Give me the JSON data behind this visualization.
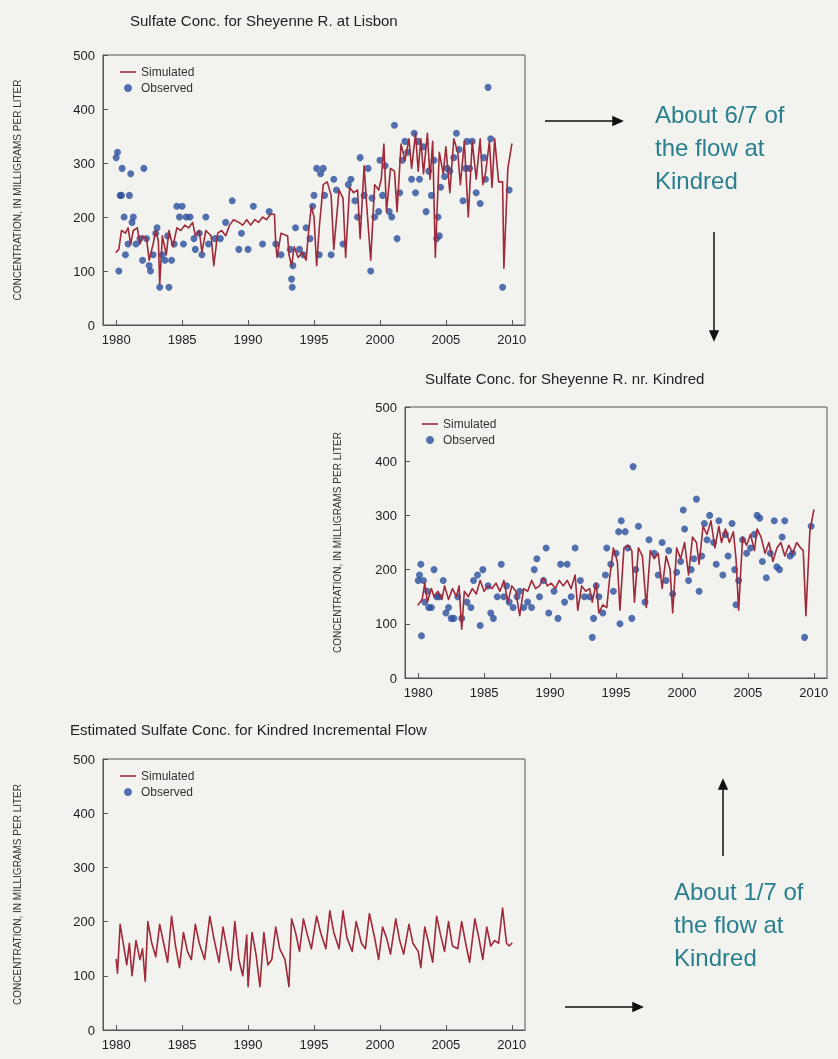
{
  "chart_data": [
    {
      "type": "line",
      "title": "Sulfate Conc. for Sheyenne R. at Lisbon",
      "ylabel": "CONCENTRATION, IN MILLIGRAMS PER LITER",
      "xlim": [
        1979,
        2011
      ],
      "xticks": [
        1980,
        1985,
        1990,
        1995,
        2000,
        2005,
        2010
      ],
      "ylim": [
        0,
        500
      ],
      "yticks": [
        0,
        100,
        200,
        300,
        400,
        500
      ],
      "grid": false,
      "legend": "top left",
      "annotations": [
        "About 6/7 of the flow at Kindred"
      ],
      "series": [
        {
          "name": "Simulated",
          "type": "line",
          "color": "#9e2a3a",
          "marker": "none",
          "line_style": "solid",
          "x": [
            1980.0,
            1980.2,
            1980.4,
            1980.7,
            1980.9,
            1981.1,
            1981.3,
            1981.6,
            1981.8,
            1982.0,
            1982.3,
            1982.5,
            1982.8,
            1983.0,
            1983.2,
            1983.3,
            1983.5,
            1983.8,
            1984.0,
            1984.3,
            1984.6,
            1984.9,
            1985.2,
            1985.5,
            1985.8,
            1986.0,
            1986.3,
            1986.5,
            1986.8,
            1987.0,
            1987.2,
            1987.4,
            1987.7,
            1988.0,
            1988.3,
            1988.6,
            1988.9,
            1989.3,
            1989.6,
            1989.9,
            1990.2,
            1990.5,
            1990.8,
            1991.1,
            1991.4,
            1991.7,
            1992.0,
            1992.1,
            1992.2,
            1992.5,
            1993.0,
            1993.1,
            1993.3,
            1993.5,
            1993.8,
            1994.1,
            1994.4,
            1994.6,
            1994.8,
            1995.0,
            1995.2,
            1995.4,
            1995.7,
            1996.0,
            1996.3,
            1996.5,
            1996.9,
            1997.2,
            1997.4,
            1997.7,
            1998.0,
            1998.3,
            1998.5,
            1998.8,
            1999.0,
            1999.3,
            1999.6,
            1999.9,
            2000.1,
            2000.3,
            2000.5,
            2000.8,
            2001.1,
            2001.3,
            2001.6,
            2001.9,
            2002.2,
            2002.4,
            2002.7,
            2002.9,
            2003.1,
            2003.3,
            2003.6,
            2003.8,
            2004.0,
            2004.2,
            2004.5,
            2004.8,
            2005.0,
            2005.3,
            2005.6,
            2005.9,
            2006.1,
            2006.4,
            2006.7,
            2007.0,
            2007.3,
            2007.6,
            2007.8,
            2008.0,
            2008.3,
            2008.5,
            2008.7,
            2009.0,
            2009.3,
            2009.4,
            2009.7,
            2010.0
          ],
          "values": [
            135,
            140,
            175,
            170,
            180,
            150,
            175,
            180,
            150,
            165,
            160,
            120,
            150,
            175,
            155,
            75,
            165,
            130,
            175,
            145,
            180,
            175,
            185,
            180,
            190,
            165,
            175,
            135,
            175,
            170,
            165,
            110,
            170,
            175,
            165,
            185,
            195,
            190,
            185,
            195,
            185,
            195,
            190,
            200,
            195,
            205,
            205,
            150,
            125,
            170,
            165,
            130,
            110,
            145,
            125,
            135,
            120,
            175,
            220,
            200,
            110,
            180,
            260,
            265,
            240,
            140,
            250,
            235,
            125,
            255,
            245,
            250,
            160,
            295,
            220,
            120,
            260,
            250,
            270,
            335,
            210,
            290,
            285,
            210,
            335,
            305,
            345,
            290,
            355,
            285,
            345,
            280,
            355,
            270,
            340,
            125,
            320,
            280,
            330,
            245,
            345,
            320,
            260,
            340,
            200,
            340,
            270,
            345,
            260,
            280,
            340,
            255,
            345,
            265,
            265,
            105,
            290,
            335
          ]
        },
        {
          "name": "Observed",
          "type": "scatter",
          "color": "#2b4f9e",
          "marker": "circle",
          "x": [
            1980.0,
            1980.1,
            1980.2,
            1980.3,
            1980.4,
            1980.45,
            1980.6,
            1980.7,
            1980.9,
            1981.0,
            1981.1,
            1981.2,
            1981.3,
            1981.5,
            1981.8,
            1982.0,
            1982.1,
            1982.3,
            1982.5,
            1982.6,
            1982.8,
            1983.0,
            1983.1,
            1983.3,
            1983.5,
            1983.7,
            1983.9,
            1984.0,
            1984.2,
            1984.4,
            1984.6,
            1984.8,
            1985.0,
            1985.1,
            1985.3,
            1985.6,
            1985.9,
            1986.0,
            1986.3,
            1986.5,
            1986.8,
            1987.0,
            1987.5,
            1987.9,
            1988.3,
            1988.8,
            1989.3,
            1989.5,
            1990.0,
            1990.4,
            1991.1,
            1991.6,
            1992.1,
            1992.5,
            1993.2,
            1993.3,
            1993.35,
            1993.4,
            1993.6,
            1993.9,
            1994.2,
            1994.4,
            1994.7,
            1994.9,
            1995.0,
            1995.2,
            1995.4,
            1995.5,
            1995.7,
            1995.8,
            1996.3,
            1996.5,
            1996.7,
            1997.2,
            1997.6,
            1997.8,
            1998.1,
            1998.3,
            1998.5,
            1998.8,
            1999.1,
            1999.3,
            1999.4,
            1999.6,
            1999.9,
            2000.0,
            2000.2,
            2000.4,
            2000.7,
            2000.9,
            2001.1,
            2001.3,
            2001.5,
            2001.7,
            2001.9,
            2002.1,
            2002.4,
            2002.6,
            2002.7,
            2002.9,
            2003.0,
            2003.3,
            2003.5,
            2003.7,
            2003.9,
            2004.1,
            2004.3,
            2004.4,
            2004.5,
            2004.6,
            2004.9,
            2005.1,
            2005.3,
            2005.6,
            2005.8,
            2006.0,
            2006.3,
            2006.5,
            2006.6,
            2006.8,
            2007.0,
            2007.3,
            2007.6,
            2007.9,
            2008.0,
            2008.2,
            2008.4,
            2009.3,
            2009.8
          ],
          "values": [
            310,
            320,
            100,
            240,
            240,
            290,
            200,
            130,
            150,
            240,
            280,
            190,
            200,
            150,
            160,
            120,
            290,
            160,
            110,
            100,
            130,
            170,
            180,
            70,
            130,
            120,
            165,
            70,
            120,
            150,
            220,
            200,
            220,
            150,
            200,
            200,
            160,
            140,
            170,
            130,
            200,
            150,
            160,
            160,
            190,
            230,
            140,
            170,
            140,
            220,
            150,
            210,
            150,
            130,
            140,
            85,
            70,
            110,
            180,
            140,
            130,
            180,
            160,
            220,
            240,
            290,
            130,
            280,
            290,
            240,
            130,
            270,
            250,
            150,
            260,
            270,
            230,
            200,
            310,
            240,
            290,
            100,
            235,
            200,
            210,
            305,
            240,
            295,
            210,
            200,
            370,
            160,
            245,
            305,
            340,
            320,
            270,
            355,
            245,
            340,
            270,
            330,
            210,
            285,
            240,
            305,
            160,
            200,
            165,
            255,
            275,
            290,
            285,
            310,
            355,
            325,
            230,
            290,
            340,
            290,
            340,
            245,
            225,
            310,
            270,
            440,
            345,
            70,
            250
          ]
        }
      ]
    },
    {
      "type": "line",
      "title": "Sulfate Conc. for Sheyenne R. nr. Kindred",
      "ylabel": "CONCENTRATION, IN MILLIGRAMS PER LITER",
      "xlim": [
        1979,
        2011
      ],
      "xticks": [
        1980,
        1985,
        1990,
        1995,
        2000,
        2005,
        2010
      ],
      "ylim": [
        0,
        500
      ],
      "yticks": [
        0,
        100,
        200,
        300,
        400,
        500
      ],
      "grid": false,
      "legend": "top left",
      "series": [
        {
          "name": "Simulated",
          "type": "line",
          "color": "#9e2a3a",
          "marker": "none",
          "line_style": "solid",
          "x": [
            1980.0,
            1980.3,
            1980.5,
            1980.7,
            1981.0,
            1981.2,
            1981.5,
            1981.8,
            1982.0,
            1982.3,
            1982.6,
            1982.9,
            1983.1,
            1983.3,
            1983.5,
            1983.8,
            1984.1,
            1984.4,
            1984.7,
            1985.0,
            1985.3,
            1985.6,
            1985.9,
            1986.2,
            1986.5,
            1986.8,
            1987.1,
            1987.4,
            1987.7,
            1988.0,
            1988.3,
            1988.6,
            1988.9,
            1989.2,
            1989.5,
            1989.8,
            1990.1,
            1990.4,
            1990.7,
            1991.0,
            1991.3,
            1991.6,
            1991.9,
            1992.1,
            1992.4,
            1992.7,
            1993.0,
            1993.2,
            1993.5,
            1993.7,
            1994.0,
            1994.3,
            1994.5,
            1994.8,
            1995.1,
            1995.3,
            1995.6,
            1995.9,
            1996.2,
            1996.4,
            1996.7,
            1997.0,
            1997.3,
            1997.6,
            1997.9,
            1998.2,
            1998.5,
            1998.8,
            1999.1,
            1999.3,
            1999.6,
            1999.9,
            2000.2,
            2000.5,
            2000.8,
            2001.1,
            2001.3,
            2001.6,
            2001.9,
            2002.2,
            2002.5,
            2002.8,
            2003.0,
            2003.3,
            2003.6,
            2003.9,
            2004.1,
            2004.3,
            2004.6,
            2004.9,
            2005.2,
            2005.5,
            2005.7,
            2006.0,
            2006.3,
            2006.6,
            2006.9,
            2007.2,
            2007.5,
            2007.8,
            2008.1,
            2008.4,
            2008.7,
            2009.0,
            2009.2,
            2009.4,
            2009.7,
            2010.0
          ],
          "values": [
            135,
            145,
            175,
            140,
            165,
            150,
            160,
            145,
            170,
            145,
            165,
            150,
            170,
            90,
            160,
            150,
            165,
            155,
            180,
            160,
            170,
            165,
            175,
            160,
            180,
            140,
            170,
            160,
            115,
            165,
            160,
            180,
            165,
            170,
            185,
            170,
            175,
            165,
            180,
            170,
            180,
            165,
            190,
            125,
            170,
            160,
            165,
            140,
            175,
            120,
            135,
            130,
            180,
            240,
            215,
            125,
            240,
            245,
            235,
            140,
            240,
            225,
            130,
            235,
            220,
            230,
            165,
            225,
            200,
            120,
            240,
            220,
            250,
            190,
            260,
            250,
            210,
            280,
            265,
            290,
            240,
            280,
            250,
            275,
            250,
            270,
            220,
            125,
            260,
            245,
            265,
            235,
            275,
            260,
            230,
            250,
            215,
            240,
            250,
            225,
            245,
            230,
            250,
            240,
            235,
            115,
            270,
            310
          ]
        },
        {
          "name": "Observed",
          "type": "scatter",
          "color": "#2b4f9e",
          "marker": "circle",
          "x": [
            1980.0,
            1980.1,
            1980.2,
            1980.25,
            1980.4,
            1980.5,
            1980.7,
            1980.8,
            1981.0,
            1981.2,
            1981.4,
            1981.6,
            1981.9,
            1982.1,
            1982.3,
            1982.5,
            1982.7,
            1983.0,
            1983.3,
            1983.7,
            1984.0,
            1984.2,
            1984.5,
            1984.7,
            1984.9,
            1985.3,
            1985.5,
            1985.7,
            1986.0,
            1986.3,
            1986.5,
            1986.7,
            1986.9,
            1987.2,
            1987.5,
            1987.7,
            1988.0,
            1988.3,
            1988.6,
            1988.8,
            1989.0,
            1989.2,
            1989.5,
            1989.7,
            1989.9,
            1990.3,
            1990.6,
            1990.8,
            1991.1,
            1991.3,
            1991.6,
            1991.9,
            1992.3,
            1992.6,
            1993.0,
            1993.2,
            1993.3,
            1993.5,
            1993.7,
            1994.0,
            1994.2,
            1994.3,
            1994.6,
            1994.8,
            1995.0,
            1995.2,
            1995.3,
            1995.4,
            1995.7,
            1995.9,
            1996.2,
            1996.3,
            1996.5,
            1996.7,
            1997.2,
            1997.5,
            1997.9,
            1998.2,
            1998.5,
            1998.8,
            1999.0,
            1999.3,
            1999.6,
            1999.9,
            2000.1,
            2000.2,
            2000.5,
            2000.7,
            2000.9,
            2001.1,
            2001.3,
            2001.5,
            2001.7,
            2001.9,
            2002.1,
            2002.4,
            2002.6,
            2002.8,
            2003.1,
            2003.3,
            2003.5,
            2003.8,
            2004.0,
            2004.1,
            2004.3,
            2004.6,
            2004.9,
            2005.2,
            2005.5,
            2005.7,
            2005.9,
            2006.1,
            2006.4,
            2006.7,
            2007.0,
            2007.2,
            2007.4,
            2007.6,
            2007.8,
            2008.2,
            2008.4,
            2009.3,
            2009.8
          ],
          "values": [
            180,
            190,
            210,
            78,
            180,
            140,
            160,
            130,
            130,
            200,
            150,
            150,
            180,
            120,
            130,
            110,
            110,
            150,
            110,
            140,
            130,
            180,
            190,
            97,
            200,
            170,
            120,
            110,
            150,
            210,
            150,
            170,
            140,
            130,
            150,
            160,
            130,
            140,
            130,
            200,
            220,
            150,
            180,
            240,
            120,
            160,
            110,
            210,
            140,
            210,
            150,
            240,
            180,
            150,
            150,
            75,
            110,
            170,
            150,
            120,
            190,
            240,
            210,
            160,
            230,
            270,
            100,
            290,
            270,
            240,
            110,
            390,
            200,
            280,
            140,
            255,
            230,
            190,
            250,
            180,
            235,
            155,
            195,
            215,
            310,
            275,
            180,
            200,
            220,
            330,
            160,
            225,
            285,
            255,
            300,
            250,
            210,
            290,
            190,
            265,
            225,
            285,
            200,
            135,
            180,
            255,
            230,
            240,
            265,
            300,
            295,
            215,
            185,
            230,
            290,
            205,
            200,
            260,
            290,
            225,
            230,
            75,
            280
          ]
        }
      ]
    },
    {
      "type": "line",
      "title": "Estimated Sulfate Conc. for Kindred Incremental Flow",
      "ylabel": "CONCENTRATION, IN MILLIGRAMS PER LITER",
      "xlim": [
        1979,
        2011
      ],
      "xticks": [
        1980,
        1985,
        1990,
        1995,
        2000,
        2005,
        2010
      ],
      "ylim": [
        0,
        500
      ],
      "yticks": [
        0,
        100,
        200,
        300,
        400,
        500
      ],
      "grid": false,
      "legend": "top left",
      "annotations": [
        "About 1/7 of the flow at Kindred"
      ],
      "series": [
        {
          "name": "Simulated",
          "type": "line",
          "color": "#9e2a3a",
          "marker": "none",
          "line_style": "solid",
          "x": [
            1980.0,
            1980.1,
            1980.3,
            1980.6,
            1980.8,
            1981.0,
            1981.2,
            1981.5,
            1981.8,
            1982.0,
            1982.2,
            1982.4,
            1982.7,
            1983.0,
            1983.3,
            1983.6,
            1983.9,
            1984.2,
            1984.5,
            1984.8,
            1985.1,
            1985.4,
            1985.7,
            1986.0,
            1986.3,
            1986.7,
            1987.1,
            1987.4,
            1987.8,
            1988.1,
            1988.4,
            1988.7,
            1989.0,
            1989.3,
            1989.6,
            1989.9,
            1990.0,
            1990.3,
            1990.6,
            1990.9,
            1991.2,
            1991.5,
            1991.8,
            1992.1,
            1992.4,
            1992.8,
            1993.1,
            1993.3,
            1993.6,
            1993.9,
            1994.2,
            1994.5,
            1994.8,
            1995.2,
            1995.5,
            1995.9,
            1996.2,
            1996.5,
            1996.9,
            1997.2,
            1997.5,
            1997.9,
            1998.2,
            1998.6,
            1998.9,
            1999.2,
            1999.6,
            1999.9,
            2000.2,
            2000.5,
            2000.8,
            2001.2,
            2001.5,
            2001.8,
            2002.2,
            2002.5,
            2002.9,
            2003.1,
            2003.4,
            2003.7,
            2004.0,
            2004.3,
            2004.6,
            2004.9,
            2005.2,
            2005.5,
            2005.9,
            2006.2,
            2006.5,
            2006.8,
            2007.2,
            2007.5,
            2007.8,
            2008.1,
            2008.4,
            2008.7,
            2009.0,
            2009.3,
            2009.6,
            2009.8,
            2010.0
          ],
          "values": [
            130,
            105,
            195,
            150,
            120,
            160,
            100,
            165,
            130,
            150,
            90,
            200,
            160,
            135,
            195,
            160,
            125,
            210,
            155,
            115,
            180,
            145,
            130,
            195,
            160,
            130,
            210,
            170,
            125,
            190,
            150,
            110,
            200,
            130,
            100,
            175,
            80,
            180,
            140,
            80,
            180,
            120,
            130,
            190,
            150,
            130,
            80,
            205,
            180,
            145,
            205,
            175,
            150,
            210,
            180,
            150,
            220,
            180,
            150,
            220,
            170,
            145,
            200,
            160,
            150,
            215,
            170,
            130,
            190,
            170,
            140,
            205,
            165,
            140,
            195,
            160,
            145,
            115,
            190,
            160,
            125,
            210,
            175,
            145,
            200,
            155,
            150,
            200,
            160,
            125,
            205,
            170,
            130,
            190,
            155,
            165,
            160,
            225,
            160,
            155,
            160
          ]
        },
        {
          "name": "Observed",
          "type": "scatter",
          "color": "#2b4f9e",
          "marker": "circle"
        }
      ]
    }
  ]
}
